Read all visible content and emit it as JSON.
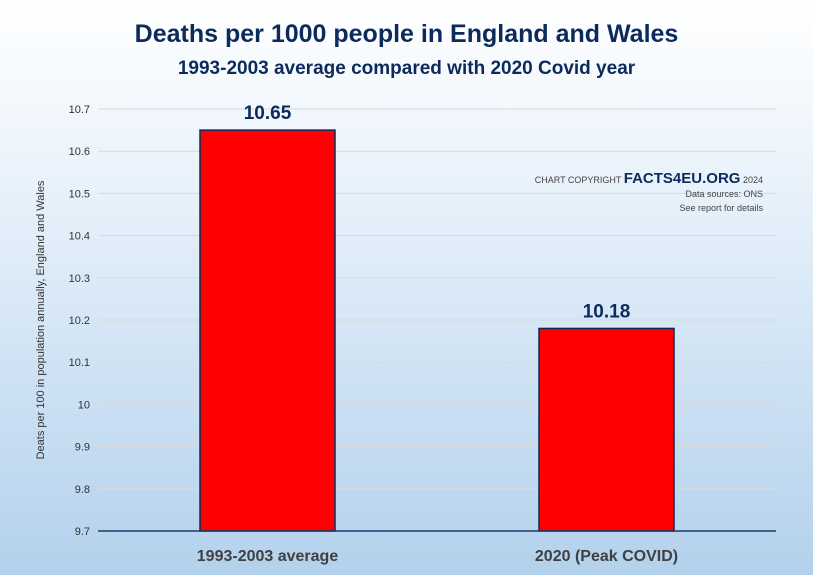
{
  "chart_data": {
    "type": "bar",
    "title": "Deaths per 1000 people in England and Wales",
    "subtitle": "1993-2003 average compared with 2020 Covid year",
    "ylabel": "Deats per 100 in population annually, England and Wales",
    "xlabel": "",
    "categories": [
      "1993-2003 average",
      "2020 (Peak COVID)"
    ],
    "values": [
      10.65,
      10.18
    ],
    "data_labels": [
      "10.65",
      "10.18"
    ],
    "ylim": [
      9.7,
      10.7
    ],
    "yticks": [
      9.7,
      9.8,
      9.9,
      10,
      10.1,
      10.2,
      10.3,
      10.4,
      10.5,
      10.6,
      10.7
    ],
    "ytick_labels": [
      "9.7",
      "9.8",
      "9.9",
      "10",
      "10.1",
      "10.2",
      "10.3",
      "10.4",
      "10.5",
      "10.6",
      "10.7"
    ],
    "grid": true,
    "legend": "none",
    "colors": {
      "bar": "#ff0000",
      "bar_border": "#0c2a5c",
      "title": "#0c2a5c",
      "axis": "#1f3864",
      "grid": "#d9d9d9"
    }
  },
  "copyright": {
    "prefix": "CHART COPYRIGHT",
    "brand": "FACTS4EU.ORG",
    "year": "2024",
    "sources": "Data sources: ONS",
    "note": "See report for details"
  }
}
